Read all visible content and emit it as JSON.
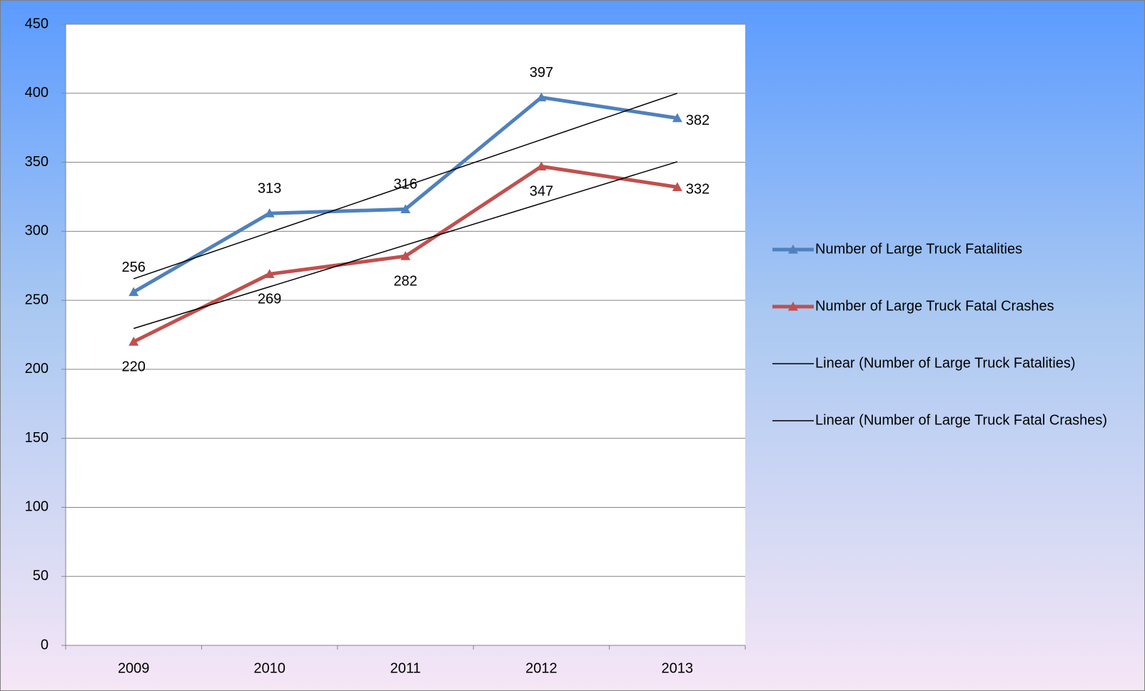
{
  "chart_data": {
    "type": "line",
    "categories": [
      "2009",
      "2010",
      "2011",
      "2012",
      "2013"
    ],
    "series": [
      {
        "name": "Number of Large Truck Fatalities",
        "color": "#4f81bd",
        "values": [
          256,
          313,
          316,
          397,
          382
        ],
        "trendline": {
          "type": "linear",
          "name": "Linear (Number of Large Truck Fatalities)",
          "color": "#000000"
        }
      },
      {
        "name": "Number of Large Truck Fatal Crashes",
        "color": "#c0504d",
        "values": [
          220,
          269,
          282,
          347,
          332
        ],
        "trendline": {
          "type": "linear",
          "name": "Linear (Number of Large Truck Fatal Crashes)",
          "color": "#000000"
        }
      }
    ],
    "ylim": [
      0,
      450
    ],
    "yticks": [
      0,
      50,
      100,
      150,
      200,
      250,
      300,
      350,
      400,
      450
    ],
    "grid": true,
    "legend": "right",
    "data_labels": true
  }
}
